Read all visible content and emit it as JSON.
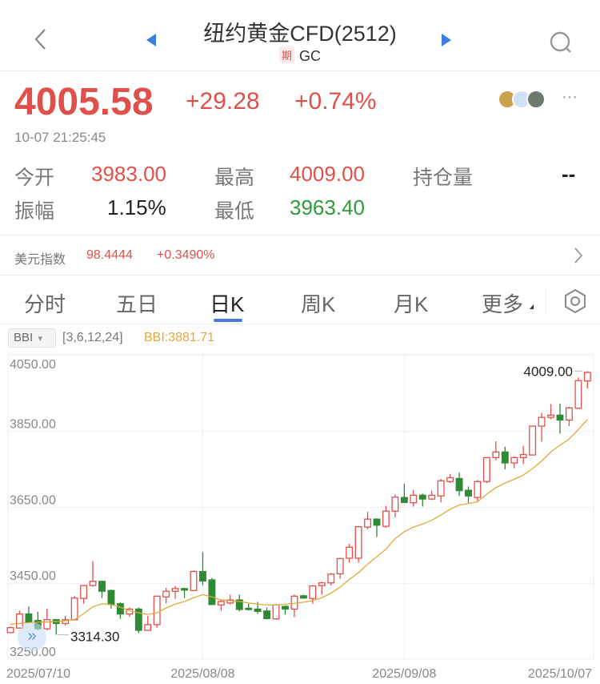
{
  "header": {
    "title": "纽约黄金CFD(2512)",
    "badge": "期",
    "code": "GC"
  },
  "quote": {
    "price": "4005.58",
    "change": "+29.28",
    "change_pct": "+0.74%",
    "time": "10-07 21:25:45"
  },
  "stats": [
    {
      "label": "今开",
      "value": "3983.00",
      "color": "red"
    },
    {
      "label": "最高",
      "value": "4009.00",
      "color": "red"
    },
    {
      "label": "持仓量",
      "value": "--",
      "color": "black"
    },
    {
      "label": "振幅",
      "value": "1.15%",
      "color": "black"
    },
    {
      "label": "最低",
      "value": "3963.40",
      "color": "green"
    }
  ],
  "usd_index": {
    "label": "美元指数",
    "value": "98.4444",
    "change": "+0.3490%"
  },
  "tabs": [
    {
      "label": "分时"
    },
    {
      "label": "五日"
    },
    {
      "label": "日K",
      "active": true
    },
    {
      "label": "周K"
    },
    {
      "label": "月K"
    },
    {
      "label": "更多"
    }
  ],
  "indicator": {
    "name": "BBI",
    "params": "[3,6,12,24]",
    "value": "BBI:3881.71"
  },
  "colors": {
    "up": "#e0504a",
    "down": "#2e8b34",
    "bbi": "#e0a93a",
    "accent": "#4a79d8"
  },
  "chart_data": {
    "type": "candlestick",
    "y_ticks": [
      "4050.00",
      "3850.00",
      "3650.00",
      "3450.00",
      "3250.00"
    ],
    "ylim": [
      3250,
      4054
    ],
    "x_ticks": [
      {
        "label": "2025/07/10",
        "index": 0
      },
      {
        "label": "2025/08/08",
        "index": 21
      },
      {
        "label": "2025/09/08",
        "index": 43
      },
      {
        "label": "2025/10/07",
        "index": 63
      }
    ],
    "max_label": "4009.00",
    "min_label": "3314.30",
    "ohlc": [
      [
        3320,
        3336,
        3319,
        3333
      ],
      [
        3332,
        3378,
        3330,
        3369
      ],
      [
        3369,
        3389,
        3346,
        3348
      ],
      [
        3352,
        3375,
        3326,
        3330
      ],
      [
        3330,
        3383,
        3326,
        3354
      ],
      [
        3354,
        3356,
        3314.3,
        3344
      ],
      [
        3344,
        3364,
        3339,
        3354
      ],
      [
        3354,
        3416,
        3352,
        3411
      ],
      [
        3410,
        3446,
        3396,
        3444
      ],
      [
        3444,
        3508,
        3441,
        3455
      ],
      [
        3455,
        3457,
        3411,
        3429
      ],
      [
        3431,
        3433,
        3383,
        3394
      ],
      [
        3396,
        3400,
        3356,
        3369
      ],
      [
        3369,
        3386,
        3362,
        3382
      ],
      [
        3382,
        3386,
        3319,
        3326
      ],
      [
        3326,
        3364,
        3325,
        3341
      ],
      [
        3341,
        3417,
        3333,
        3416
      ],
      [
        3414,
        3438,
        3397,
        3429
      ],
      [
        3429,
        3443,
        3409,
        3436
      ],
      [
        3436,
        3438,
        3411,
        3432
      ],
      [
        3431,
        3484,
        3430,
        3481
      ],
      [
        3481,
        3532,
        3445,
        3456
      ],
      [
        3459,
        3464,
        3393,
        3394
      ],
      [
        3393,
        3406,
        3378,
        3402
      ],
      [
        3398,
        3420,
        3394,
        3406
      ],
      [
        3406,
        3420,
        3376,
        3381
      ],
      [
        3384,
        3396,
        3378,
        3381
      ],
      [
        3382,
        3401,
        3369,
        3376
      ],
      [
        3377,
        3386,
        3355,
        3357
      ],
      [
        3356,
        3394,
        3354,
        3393
      ],
      [
        3389,
        3392,
        3367,
        3382
      ],
      [
        3382,
        3420,
        3361,
        3416
      ],
      [
        3417,
        3420,
        3410,
        3411
      ],
      [
        3410,
        3445,
        3396,
        3443
      ],
      [
        3444,
        3454,
        3420,
        3451
      ],
      [
        3451,
        3477,
        3444,
        3474
      ],
      [
        3475,
        3517,
        3462,
        3515
      ],
      [
        3516,
        3554,
        3504,
        3545
      ],
      [
        3516,
        3601,
        3504,
        3599
      ],
      [
        3598,
        3638,
        3592,
        3619
      ],
      [
        3619,
        3621,
        3572,
        3603
      ],
      [
        3600,
        3654,
        3596,
        3640
      ],
      [
        3640,
        3684,
        3624,
        3677
      ],
      [
        3676,
        3712,
        3662,
        3663
      ],
      [
        3662,
        3696,
        3652,
        3682
      ],
      [
        3682,
        3686,
        3652,
        3672
      ],
      [
        3672,
        3694,
        3669,
        3682
      ],
      [
        3680,
        3725,
        3663,
        3720
      ],
      [
        3718,
        3738,
        3714,
        3728
      ],
      [
        3726,
        3742,
        3680,
        3694
      ],
      [
        3695,
        3705,
        3662,
        3680
      ],
      [
        3676,
        3722,
        3666,
        3718
      ],
      [
        3718,
        3782,
        3714,
        3781
      ],
      [
        3781,
        3824,
        3774,
        3796
      ],
      [
        3796,
        3810,
        3750,
        3767
      ],
      [
        3767,
        3784,
        3753,
        3781
      ],
      [
        3781,
        3812,
        3764,
        3789
      ],
      [
        3788,
        3865,
        3787,
        3864
      ],
      [
        3864,
        3899,
        3823,
        3887
      ],
      [
        3887,
        3922,
        3882,
        3893
      ],
      [
        3893,
        3923,
        3844,
        3880
      ],
      [
        3880,
        3915,
        3864,
        3912
      ],
      [
        3911,
        3992,
        3909,
        3984
      ],
      [
        3983,
        4009,
        3963.4,
        4005.58
      ]
    ],
    "bbi": [
      3342,
      3344,
      3346,
      3347,
      3348,
      3349,
      3351,
      3354,
      3370,
      3388,
      3396,
      3394,
      3387,
      3378,
      3372,
      3368,
      3372,
      3385,
      3395,
      3402,
      3412,
      3420,
      3414,
      3406,
      3404,
      3402,
      3398,
      3395,
      3393,
      3393,
      3395,
      3397,
      3400,
      3404,
      3412,
      3424,
      3440,
      3460,
      3478,
      3500,
      3520,
      3540,
      3568,
      3586,
      3598,
      3606,
      3616,
      3630,
      3645,
      3656,
      3660,
      3665,
      3685,
      3702,
      3714,
      3724,
      3735,
      3752,
      3772,
      3796,
      3814,
      3830,
      3855,
      3881.71
    ]
  }
}
